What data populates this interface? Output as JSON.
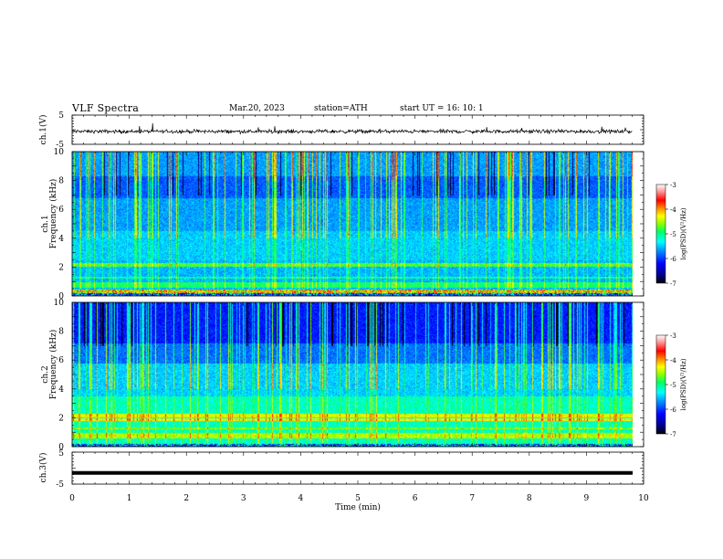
{
  "header": {
    "title": "VLF  Spectra",
    "date": "Mar.20, 2023",
    "station": "station=ATH",
    "start_ut": "start  UT  =    16: 10: 1"
  },
  "chart_data": [
    {
      "type": "line",
      "panel": "waveform-ch1",
      "ylabel": "ch.1(V)",
      "yticks": [
        "5",
        "-5"
      ],
      "ylim": [
        -5,
        5
      ],
      "xlim": [
        0,
        10
      ],
      "description_of_values": "noisy waveform around -0.6 V spanning 0 to 9.8 min"
    },
    {
      "type": "heatmap",
      "panel": "spectrogram-ch1",
      "ylabel_line1": "ch.1",
      "ylabel_line2": "Frequency  (kHz)",
      "yticks": [
        "0",
        "2",
        "4",
        "6",
        "8",
        "10"
      ],
      "ylim": [
        0,
        10
      ],
      "xlim": [
        0,
        10
      ],
      "colorbar": {
        "label": "log(PSD)(V²/Hz)",
        "ticks": [
          "-3",
          "-4",
          "-5",
          "-6",
          "-7"
        ],
        "range": [
          -7,
          -3
        ]
      }
    },
    {
      "type": "heatmap",
      "panel": "spectrogram-ch2",
      "ylabel_line1": "ch.2",
      "ylabel_line2": "Frequency  (kHz)",
      "yticks": [
        "0",
        "2",
        "4",
        "6",
        "8",
        "10"
      ],
      "ylim": [
        0,
        10
      ],
      "xlim": [
        0,
        10
      ],
      "colorbar": {
        "label": "log(PSD)(V²/Hz)",
        "ticks": [
          "-3",
          "-4",
          "-5",
          "-6",
          "-7"
        ],
        "range": [
          -7,
          -3
        ]
      }
    },
    {
      "type": "line",
      "panel": "waveform-ch3",
      "ylabel": "ch.3(V)",
      "yticks": [
        "5",
        "-5"
      ],
      "ylim": [
        -5,
        5
      ],
      "xlim": [
        0,
        10
      ],
      "constant_value": -1.5
    }
  ],
  "x_axis": {
    "label": "Time  (min)",
    "ticks": [
      "0",
      "1",
      "2",
      "3",
      "4",
      "5",
      "6",
      "7",
      "8",
      "9",
      "10"
    ]
  },
  "colors": {
    "colormap": [
      "#000000",
      "#000088",
      "#0000ff",
      "#0088ff",
      "#00ffff",
      "#00ff88",
      "#44ff00",
      "#ccff00",
      "#ffff00",
      "#ff8800",
      "#ff0000",
      "#ff8888",
      "#ffffff"
    ]
  }
}
